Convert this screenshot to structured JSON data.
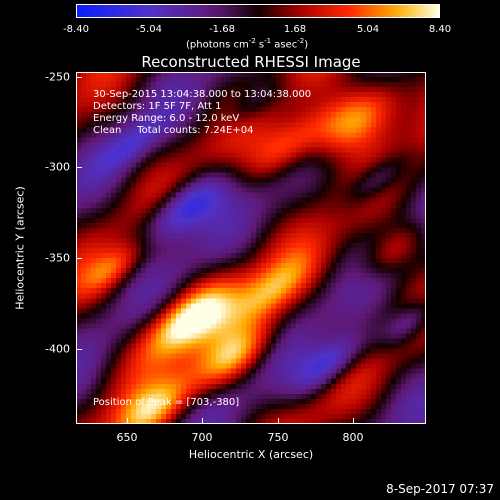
{
  "colorbar": {
    "tick_labels": [
      "-8.40",
      "-5.04",
      "-1.68",
      "1.68",
      "5.04",
      "8.40"
    ],
    "units": "(photons cm",
    "units_exp1": "-2",
    "units_mid": " s",
    "units_exp2": "-1",
    "units_mid2": " asec",
    "units_exp3": "-2",
    "units_end": ")"
  },
  "title": "Reconstructed RHESSI Image",
  "info": {
    "line1": "30-Sep-2015 13:04:38.000 to 13:04:38.000",
    "line2": "Detectors: 1F 5F 7F, Att 1",
    "line3": "Energy Range: 6.0 - 12.0 keV",
    "line4": "Clean     Total counts: 7.24E+04"
  },
  "peak_label": "Position of Peak = [703,-380]",
  "axes": {
    "x_label": "Heliocentric X (arcsec)",
    "y_label": "Heliocentric Y (arcsec)",
    "x_ticks": [
      "650",
      "700",
      "750",
      "800"
    ],
    "y_ticks": [
      "-250",
      "-300",
      "-350",
      "-400"
    ]
  },
  "footer_timestamp": "8-Sep-2017 07:37"
}
